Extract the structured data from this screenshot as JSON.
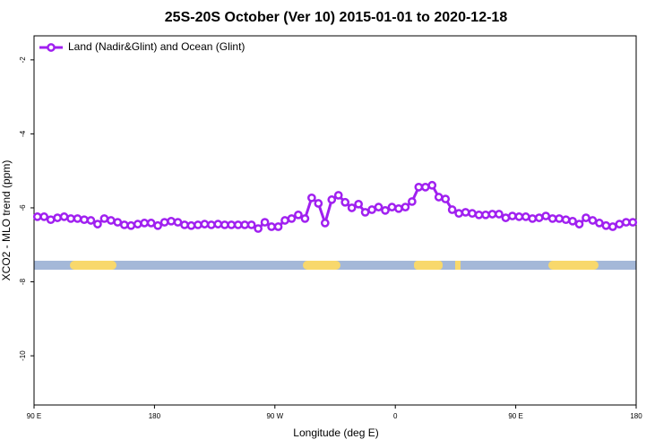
{
  "chart_data": {
    "type": "line",
    "title": "25S-20S October (Ver 10)   2015-01-01 to 2020-12-18",
    "x_label": "Longitude (deg E)",
    "y_label": "XCO2 - MLO trend (ppm)",
    "xlim": [
      90,
      540
    ],
    "xticks": [
      {
        "value": 90,
        "label": "90 E"
      },
      180,
      {
        "value": 270,
        "label": "90 W"
      },
      {
        "value": 360,
        "label": "0"
      },
      {
        "value": 450,
        "label": "90 E"
      },
      {
        "value": 540,
        "label": "180"
      }
    ],
    "ylim": [
      -11.33,
      -1.35
    ],
    "yticks": [
      -2,
      -4,
      -6,
      -8,
      -10
    ],
    "legend": "upper left",
    "x": [
      92.5,
      97.5,
      102.5,
      107.5,
      112.5,
      117.5,
      122.5,
      127.5,
      132.5,
      137.5,
      142.5,
      147.5,
      152.5,
      157.5,
      162.5,
      167.5,
      172.5,
      177.5,
      182.5,
      187.5,
      192.5,
      197.5,
      202.5,
      207.5,
      212.5,
      217.5,
      222.5,
      227.5,
      232.5,
      237.5,
      242.5,
      247.5,
      252.5,
      257.5,
      262.5,
      267.5,
      272.5,
      277.5,
      282.5,
      287.5,
      292.5,
      297.5,
      302.5,
      307.5,
      312.5,
      317.5,
      322.5,
      327.5,
      332.5,
      337.5,
      342.5,
      347.5,
      352.5,
      357.5,
      362.5,
      367.5,
      372.5,
      377.5,
      382.5,
      387.5,
      392.5,
      397.5,
      402.5,
      407.5,
      412.5,
      417.5,
      422.5,
      427.5,
      432.5,
      437.5,
      442.5,
      447.5,
      452.5,
      457.5,
      462.5,
      467.5,
      472.5,
      477.5,
      482.5,
      487.5,
      492.5,
      497.5,
      502.5,
      507.5,
      512.5,
      517.5,
      522.5,
      527.5,
      532.5,
      537.5
    ],
    "series": [
      {
        "name": "Land (Nadir&Glint) and Ocean (Glint)",
        "color": "#a020f0",
        "values": [
          -6.24,
          -6.24,
          -6.32,
          -6.27,
          -6.24,
          -6.29,
          -6.29,
          -6.32,
          -6.34,
          -6.44,
          -6.29,
          -6.34,
          -6.39,
          -6.46,
          -6.48,
          -6.44,
          -6.41,
          -6.41,
          -6.48,
          -6.39,
          -6.36,
          -6.39,
          -6.46,
          -6.48,
          -6.46,
          -6.44,
          -6.46,
          -6.44,
          -6.46,
          -6.46,
          -6.46,
          -6.46,
          -6.46,
          -6.56,
          -6.39,
          -6.51,
          -6.51,
          -6.34,
          -6.29,
          -6.19,
          -6.29,
          -5.73,
          -5.88,
          -6.41,
          -5.78,
          -5.66,
          -5.85,
          -6.0,
          -5.9,
          -6.12,
          -6.05,
          -5.98,
          -6.07,
          -5.98,
          -6.02,
          -5.98,
          -5.83,
          -5.44,
          -5.44,
          -5.39,
          -5.71,
          -5.76,
          -6.05,
          -6.15,
          -6.12,
          -6.15,
          -6.19,
          -6.19,
          -6.17,
          -6.17,
          -6.27,
          -6.22,
          -6.24,
          -6.24,
          -6.29,
          -6.27,
          -6.22,
          -6.29,
          -6.29,
          -6.32,
          -6.36,
          -6.44,
          -6.27,
          -6.34,
          -6.41,
          -6.48,
          -6.51,
          -6.44,
          -6.39,
          -6.39
        ]
      }
    ]
  }
}
